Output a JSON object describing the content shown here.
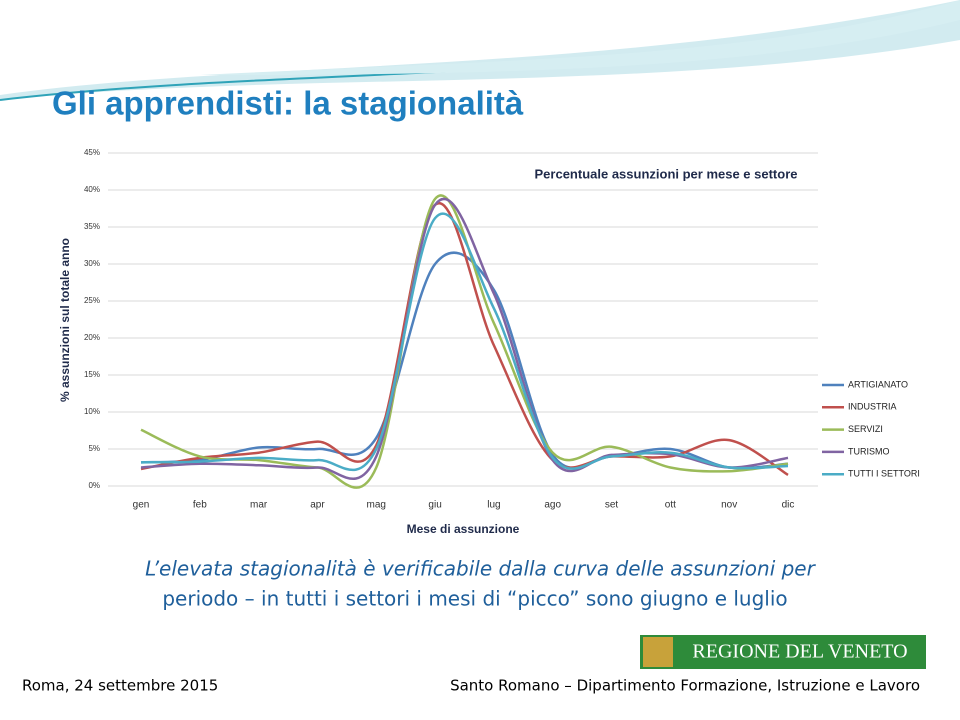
{
  "title": "Gli apprendisti: la stagionalità",
  "chart_data": {
    "type": "line",
    "title": "Percentuale assunzioni per mese e settore",
    "x_label": "Mese di assunzione",
    "y_label": "% assunzioni sul totale anno",
    "categories": [
      "gen",
      "feb",
      "mar",
      "apr",
      "mag",
      "giu",
      "lug",
      "ago",
      "set",
      "ott",
      "nov",
      "dic"
    ],
    "series": [
      {
        "name": "ARTIGIANATO",
        "color": "#4f81bd",
        "values": [
          3.2,
          3.5,
          5.2,
          5.0,
          6.5,
          30.0,
          26.5,
          4.2,
          4.0,
          5.0,
          2.5,
          3.0
        ]
      },
      {
        "name": "INDUSTRIA",
        "color": "#c0504d",
        "values": [
          2.3,
          3.8,
          4.5,
          6.0,
          5.5,
          38.0,
          19.0,
          3.5,
          4.0,
          4.0,
          6.2,
          1.5
        ]
      },
      {
        "name": "SERVIZI",
        "color": "#9bbb59",
        "values": [
          7.6,
          4.0,
          3.5,
          2.5,
          2.5,
          38.8,
          22.0,
          4.5,
          5.3,
          2.5,
          2.0,
          3.0
        ]
      },
      {
        "name": "TURISMO",
        "color": "#8064a2",
        "values": [
          2.5,
          3.0,
          2.8,
          2.5,
          4.0,
          38.0,
          26.0,
          3.5,
          4.2,
          4.3,
          2.5,
          3.8
        ]
      },
      {
        "name": "TUTTI I SETTORI",
        "color": "#4bacc6",
        "values": [
          3.2,
          3.3,
          3.8,
          3.5,
          5.0,
          36.2,
          24.0,
          3.8,
          4.0,
          4.5,
          2.5,
          2.7
        ]
      }
    ],
    "ylim": [
      0,
      45
    ],
    "yticks": [
      {
        "value": 0,
        "label": "0%"
      },
      {
        "value": 5,
        "label": "5%"
      },
      {
        "value": 10,
        "label": "10%"
      },
      {
        "value": 15,
        "label": "15%"
      },
      {
        "value": 20,
        "label": "20%"
      },
      {
        "value": 25,
        "label": "25%"
      },
      {
        "value": 30,
        "label": "30%"
      },
      {
        "value": 35,
        "label": "35%"
      },
      {
        "value": 40,
        "label": "40%"
      },
      {
        "value": 45,
        "label": "45%"
      }
    ],
    "grid": true,
    "legend": "right"
  },
  "caption": [
    "L’elevata stagionalità è verificabile dalla curva delle assunzioni per",
    "periodo – in tutti i settori i mesi di “picco” sono giugno e luglio"
  ],
  "logo": "REGIONE DEL VENETO",
  "footer": {
    "left": "Roma, 24 settembre 2015",
    "right": "Santo Romano – Dipartimento Formazione, Istruzione e Lavoro"
  }
}
